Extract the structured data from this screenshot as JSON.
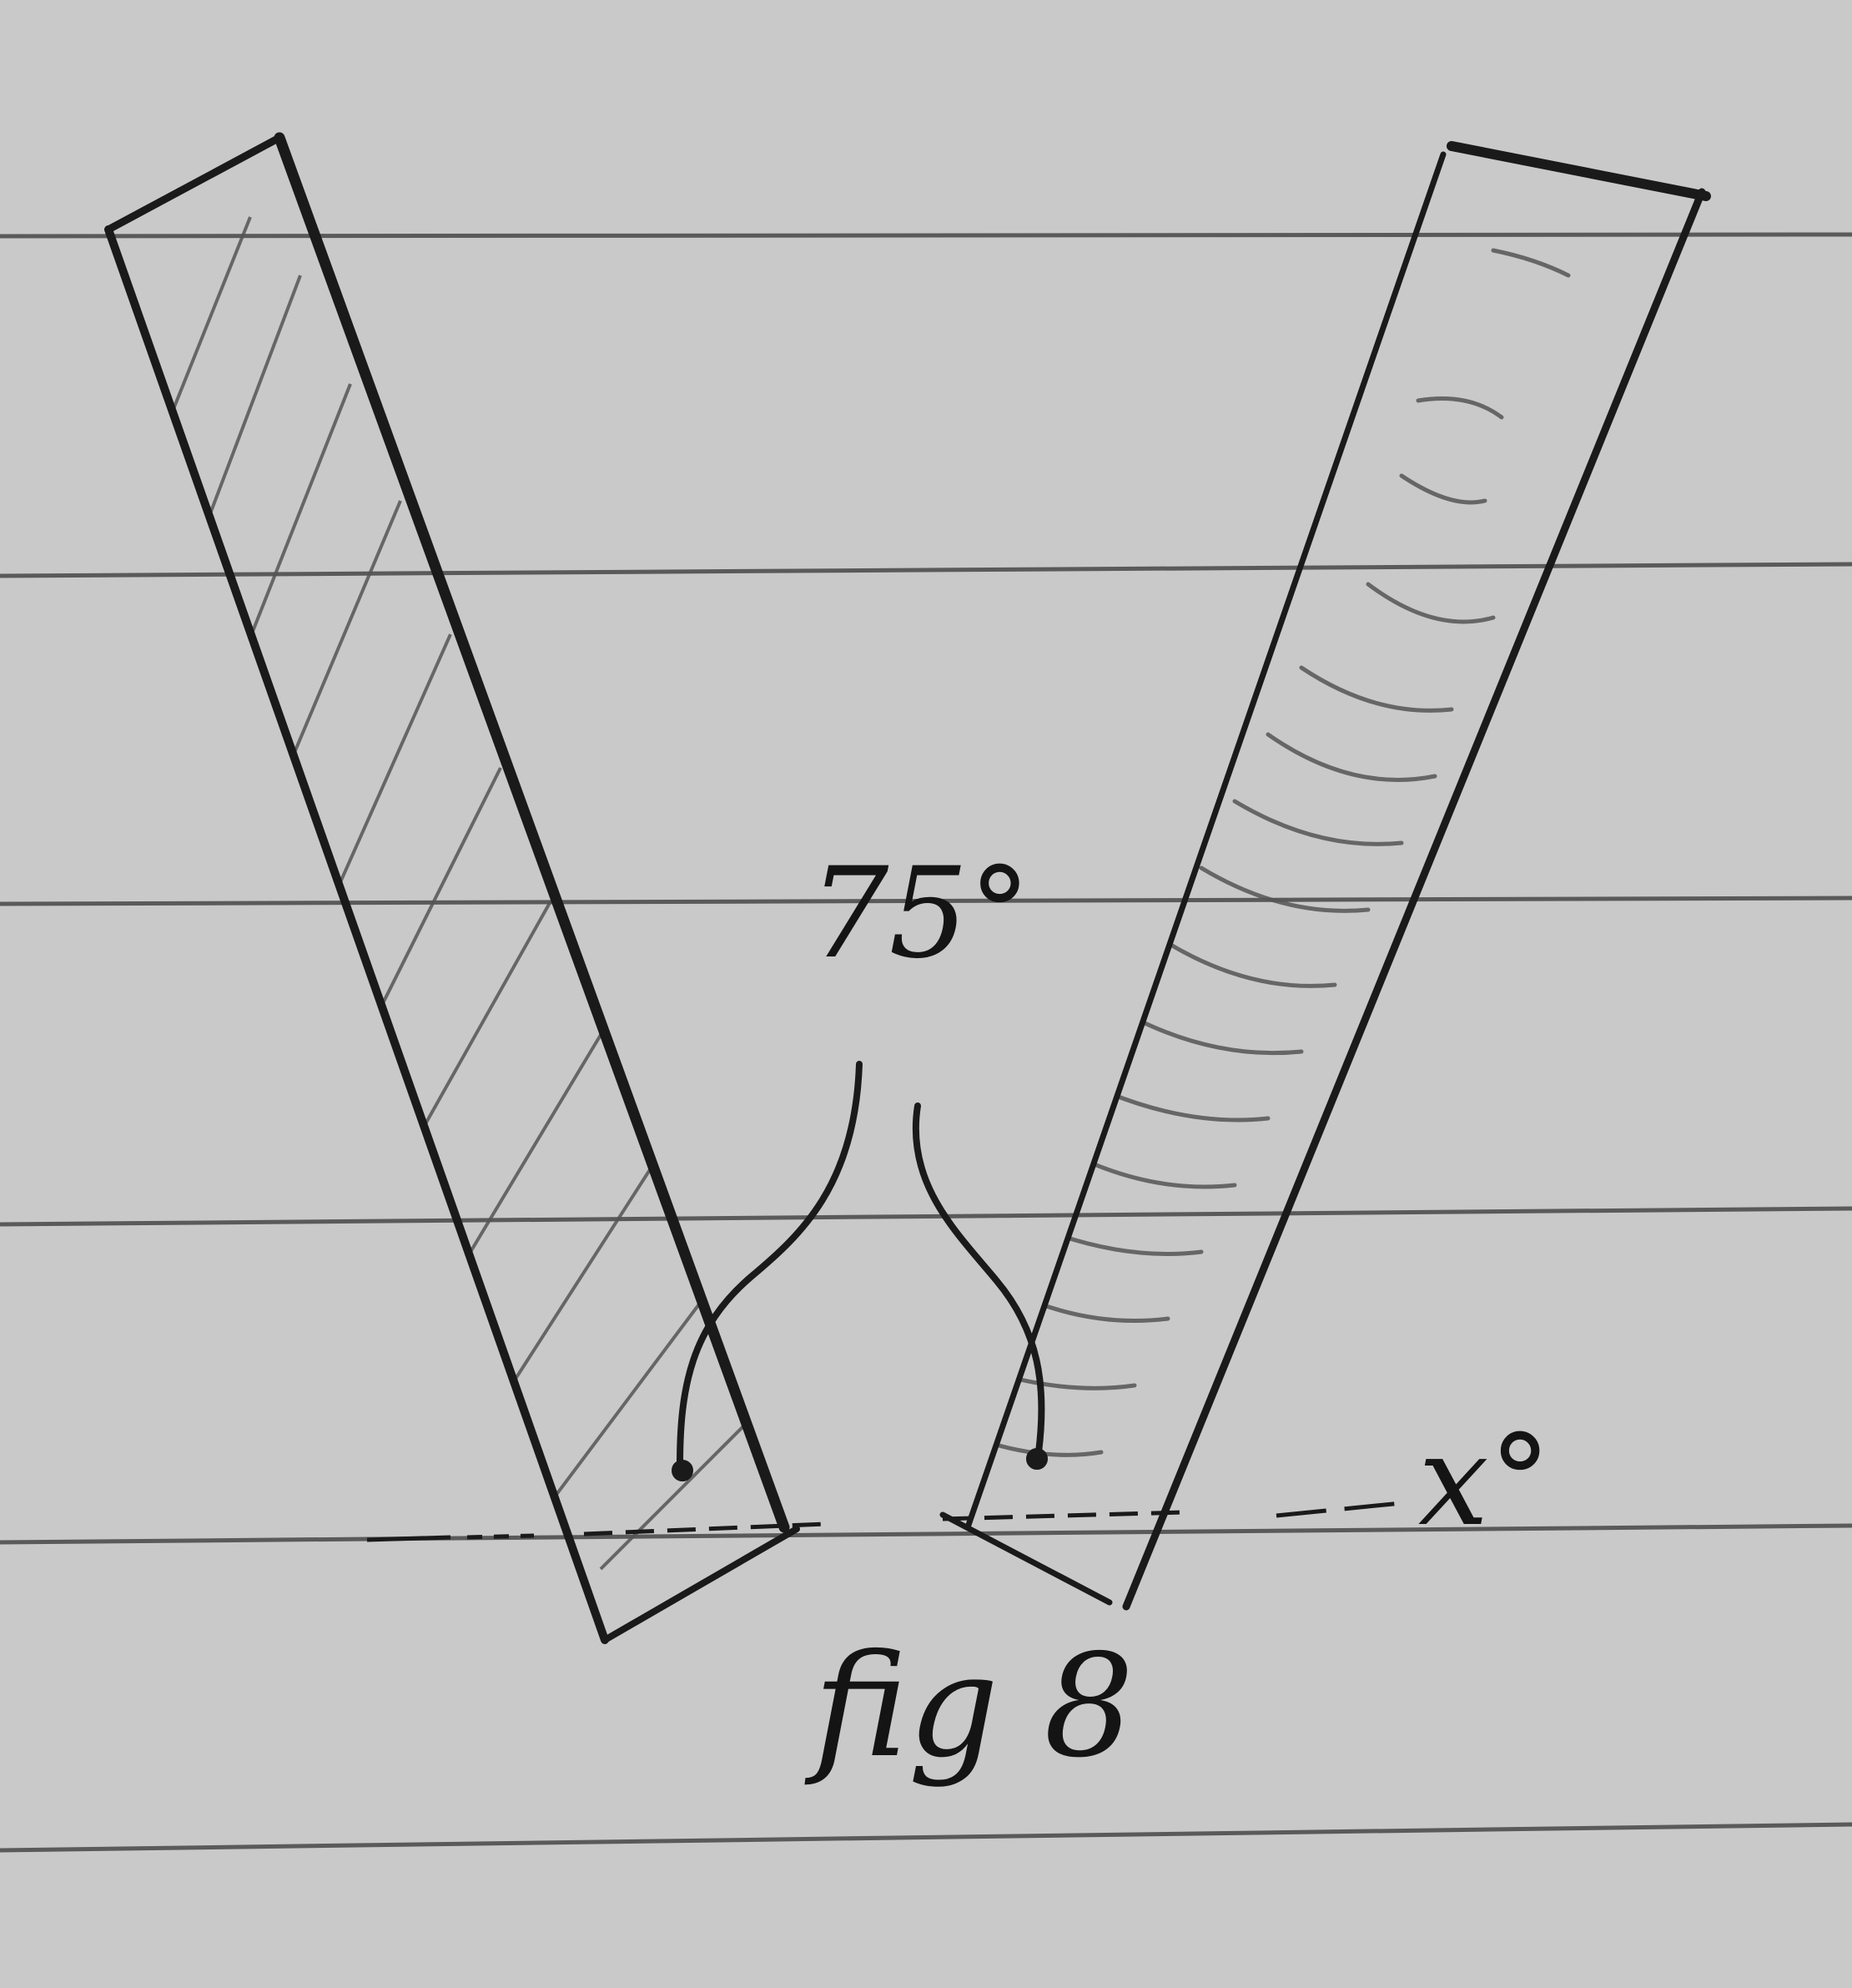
{
  "labels": {
    "angle": "75°",
    "figure": "fig 8",
    "axis": "x°"
  },
  "colors": {
    "paper": "#c9c9c9",
    "ruled_line": "#5a5a5a",
    "ink": "#1a1a1a",
    "hatch": "#555555"
  }
}
